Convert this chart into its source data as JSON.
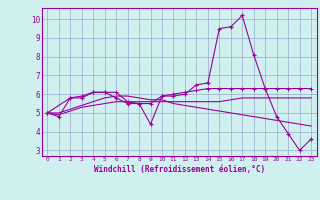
{
  "xlabel": "Windchill (Refroidissement éolien,°C)",
  "ylabel": "",
  "bg_color": "#d0f0f0",
  "line_color": "#990099",
  "grid_color": "#99aacc",
  "xlim": [
    -0.5,
    23.5
  ],
  "ylim": [
    2.7,
    10.6
  ],
  "xtick_labels": [
    "0",
    "1",
    "2",
    "3",
    "4",
    "5",
    "6",
    "7",
    "8",
    "9",
    "10",
    "11",
    "12",
    "13",
    "14",
    "15",
    "16",
    "17",
    "18",
    "19",
    "20",
    "21",
    "22",
    "23"
  ],
  "ytick_values": [
    3,
    4,
    5,
    6,
    7,
    8,
    9,
    10
  ],
  "line1_x": [
    0,
    1,
    2,
    3,
    4,
    5,
    6,
    7,
    8,
    9,
    10,
    11,
    12,
    13,
    14,
    15,
    16,
    17,
    18,
    19,
    20,
    21,
    22,
    23
  ],
  "line1_y": [
    5.0,
    4.8,
    5.8,
    5.8,
    6.1,
    6.1,
    5.8,
    5.5,
    5.5,
    4.4,
    5.9,
    5.9,
    6.0,
    6.5,
    6.6,
    9.5,
    9.6,
    10.2,
    8.1,
    6.3,
    4.8,
    3.9,
    3.0,
    3.6
  ],
  "line2_x": [
    0,
    1,
    2,
    3,
    4,
    5,
    6,
    7,
    8,
    9,
    10,
    11,
    12,
    13,
    14,
    15,
    16,
    17,
    18,
    19,
    20,
    21,
    22,
    23
  ],
  "line2_y": [
    5.0,
    4.9,
    5.1,
    5.3,
    5.4,
    5.5,
    5.6,
    5.6,
    5.6,
    5.6,
    5.6,
    5.6,
    5.6,
    5.6,
    5.6,
    5.6,
    5.7,
    5.8,
    5.8,
    5.8,
    5.8,
    5.8,
    5.8,
    5.8
  ],
  "line3_x": [
    0,
    1,
    2,
    3,
    4,
    5,
    6,
    7,
    8,
    9,
    10,
    11,
    12,
    13,
    14,
    15,
    16,
    17,
    18,
    19,
    20,
    21,
    22,
    23
  ],
  "line3_y": [
    5.0,
    5.0,
    5.2,
    5.4,
    5.6,
    5.8,
    5.9,
    5.9,
    5.8,
    5.7,
    5.7,
    5.5,
    5.4,
    5.3,
    5.2,
    5.1,
    5.0,
    4.9,
    4.8,
    4.7,
    4.6,
    4.5,
    4.4,
    4.3
  ],
  "line4_x": [
    0,
    2,
    3,
    4,
    5,
    6,
    7,
    8,
    9,
    10,
    11,
    12,
    13,
    14,
    15,
    16,
    17,
    18,
    19,
    20,
    21,
    22,
    23
  ],
  "line4_y": [
    5.0,
    5.8,
    5.9,
    6.1,
    6.1,
    6.1,
    5.6,
    5.5,
    5.5,
    5.9,
    6.0,
    6.1,
    6.2,
    6.3,
    6.3,
    6.3,
    6.3,
    6.3,
    6.3,
    6.3,
    6.3,
    6.3,
    6.3
  ]
}
